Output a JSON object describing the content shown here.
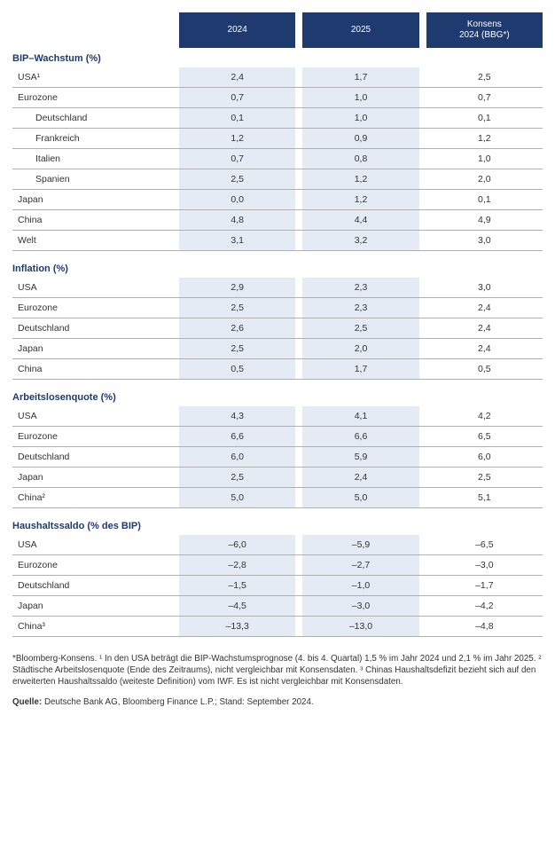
{
  "columns": {
    "c1": "2024",
    "c2": "2025",
    "c3": "Konsens\n2024 (BBG*)"
  },
  "sections": [
    {
      "title": "BIP–Wachstum (%)",
      "rows": [
        {
          "label": "USA¹",
          "indent": false,
          "v": [
            "2,4",
            "1,7",
            "2,5"
          ]
        },
        {
          "label": "Eurozone",
          "indent": false,
          "v": [
            "0,7",
            "1,0",
            "0,7"
          ]
        },
        {
          "label": "Deutschland",
          "indent": true,
          "v": [
            "0,1",
            "1,0",
            "0,1"
          ]
        },
        {
          "label": "Frankreich",
          "indent": true,
          "v": [
            "1,2",
            "0,9",
            "1,2"
          ]
        },
        {
          "label": "Italien",
          "indent": true,
          "v": [
            "0,7",
            "0,8",
            "1,0"
          ]
        },
        {
          "label": "Spanien",
          "indent": true,
          "v": [
            "2,5",
            "1,2",
            "2,0"
          ]
        },
        {
          "label": "Japan",
          "indent": false,
          "v": [
            "0,0",
            "1,2",
            "0,1"
          ]
        },
        {
          "label": "China",
          "indent": false,
          "v": [
            "4,8",
            "4,4",
            "4,9"
          ]
        },
        {
          "label": "Welt",
          "indent": false,
          "v": [
            "3,1",
            "3,2",
            "3,0"
          ]
        }
      ]
    },
    {
      "title": "Inflation (%)",
      "rows": [
        {
          "label": "USA",
          "indent": false,
          "v": [
            "2,9",
            "2,3",
            "3,0"
          ]
        },
        {
          "label": "Eurozone",
          "indent": false,
          "v": [
            "2,5",
            "2,3",
            "2,4"
          ]
        },
        {
          "label": "Deutschland",
          "indent": false,
          "v": [
            "2,6",
            "2,5",
            "2,4"
          ]
        },
        {
          "label": "Japan",
          "indent": false,
          "v": [
            "2,5",
            "2,0",
            "2,4"
          ]
        },
        {
          "label": "China",
          "indent": false,
          "v": [
            "0,5",
            "1,7",
            "0,5"
          ]
        }
      ]
    },
    {
      "title": "Arbeitslosenquote (%)",
      "rows": [
        {
          "label": "USA",
          "indent": false,
          "v": [
            "4,3",
            "4,1",
            "4,2"
          ]
        },
        {
          "label": "Eurozone",
          "indent": false,
          "v": [
            "6,6",
            "6,6",
            "6,5"
          ]
        },
        {
          "label": "Deutschland",
          "indent": false,
          "v": [
            "6,0",
            "5,9",
            "6,0"
          ]
        },
        {
          "label": "Japan",
          "indent": false,
          "v": [
            "2,5",
            "2,4",
            "2,5"
          ]
        },
        {
          "label": "China²",
          "indent": false,
          "v": [
            "5,0",
            "5,0",
            "5,1"
          ]
        }
      ]
    },
    {
      "title": "Haushaltssaldo (% des BIP)",
      "rows": [
        {
          "label": "USA",
          "indent": false,
          "v": [
            "–6,0",
            "–5,9",
            "–6,5"
          ]
        },
        {
          "label": "Eurozone",
          "indent": false,
          "v": [
            "–2,8",
            "–2,7",
            "–3,0"
          ]
        },
        {
          "label": "Deutschland",
          "indent": false,
          "v": [
            "–1,5",
            "–1,0",
            "–1,7"
          ]
        },
        {
          "label": "Japan",
          "indent": false,
          "v": [
            "–4,5",
            "–3,0",
            "–4,2"
          ]
        },
        {
          "label": "China³",
          "indent": false,
          "v": [
            "–13,3",
            "–13,0",
            "–4,8"
          ]
        }
      ]
    }
  ],
  "footnotes": "*Bloomberg-Konsens. ¹ In den USA beträgt die BIP-Wachstumsprognose (4. bis 4. Quartal) 1,5 % im Jahr 2024 und 2,1 % im Jahr 2025. ² Städtische Arbeitslosenquote (Ende des Zeitraums), nicht vergleichbar mit Konsensdaten. ³ Chinas Haushaltsdefizit bezieht sich auf den erweiterten Haushaltssaldo (weiteste Definition) vom IWF. Es ist nicht vergleichbar mit Konsensdaten.",
  "source_label": "Quelle:",
  "source_text": " Deutsche Bank AG, Bloomberg Finance L.P.; Stand: September 2024.",
  "colors": {
    "header_bg": "#1f3a6e",
    "shade_bg": "#e4ebf4",
    "title_color": "#1f3a6e",
    "border": "#b0b0b0"
  }
}
